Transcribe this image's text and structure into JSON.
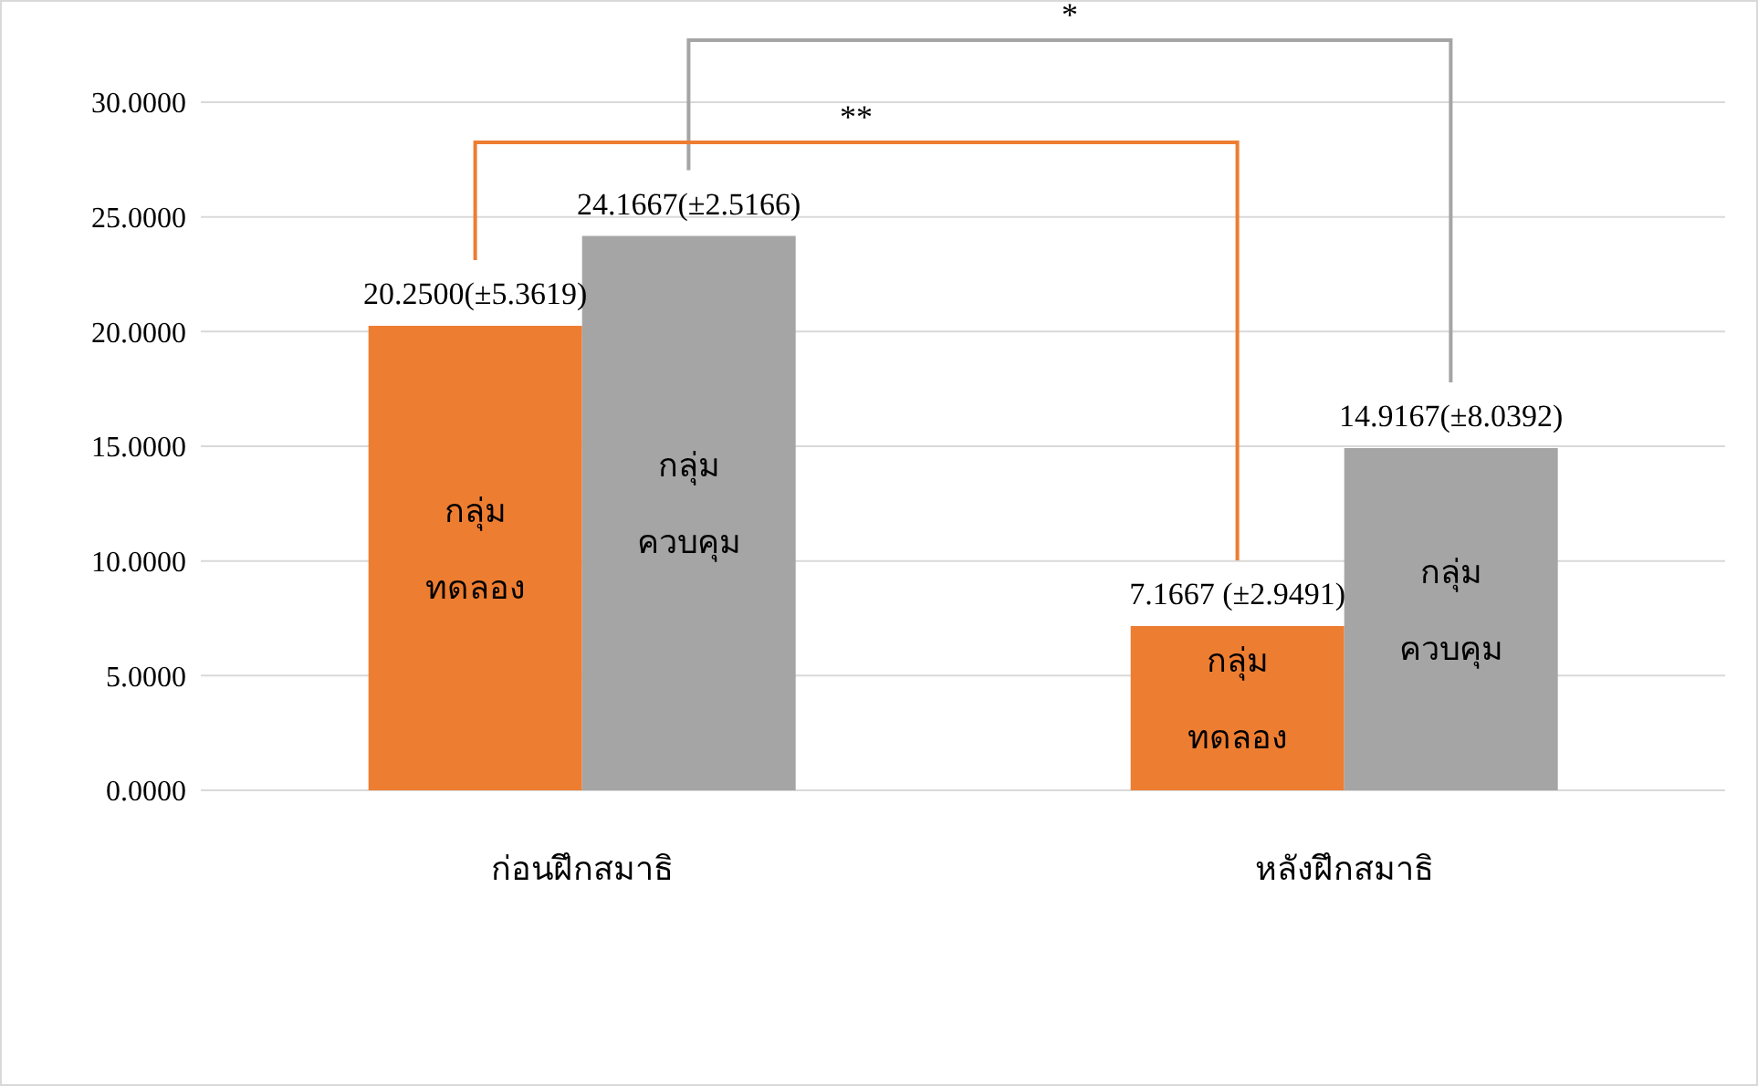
{
  "chart_data": {
    "type": "bar",
    "categories": [
      "ก่อนฝึกสมาธิ",
      "หลังฝึกสมาธิ"
    ],
    "series": [
      {
        "name": "กลุ่ม ทดลอง",
        "color": "#ed7d31",
        "values": [
          20.25,
          7.1667
        ],
        "value_labels": [
          "20.2500(±5.3619)",
          "7.1667 (±2.9491)"
        ]
      },
      {
        "name": "กลุ่ม ควบคุม",
        "color": "#a5a5a5",
        "values": [
          24.1667,
          14.9167
        ],
        "value_labels": [
          "24.1667(±2.5166)",
          "14.9167(±8.0392)"
        ]
      }
    ],
    "ylim": [
      0,
      30
    ],
    "yticks": [
      {
        "value": 0,
        "label": "0.0000"
      },
      {
        "value": 5,
        "label": "5.0000"
      },
      {
        "value": 10,
        "label": "10.0000"
      },
      {
        "value": 15,
        "label": "15.0000"
      },
      {
        "value": 20,
        "label": "20.0000"
      },
      {
        "value": 25,
        "label": "25.0000"
      },
      {
        "value": 30,
        "label": "30.0000"
      }
    ],
    "grid": "y",
    "annotations": [
      "*",
      "**"
    ]
  }
}
